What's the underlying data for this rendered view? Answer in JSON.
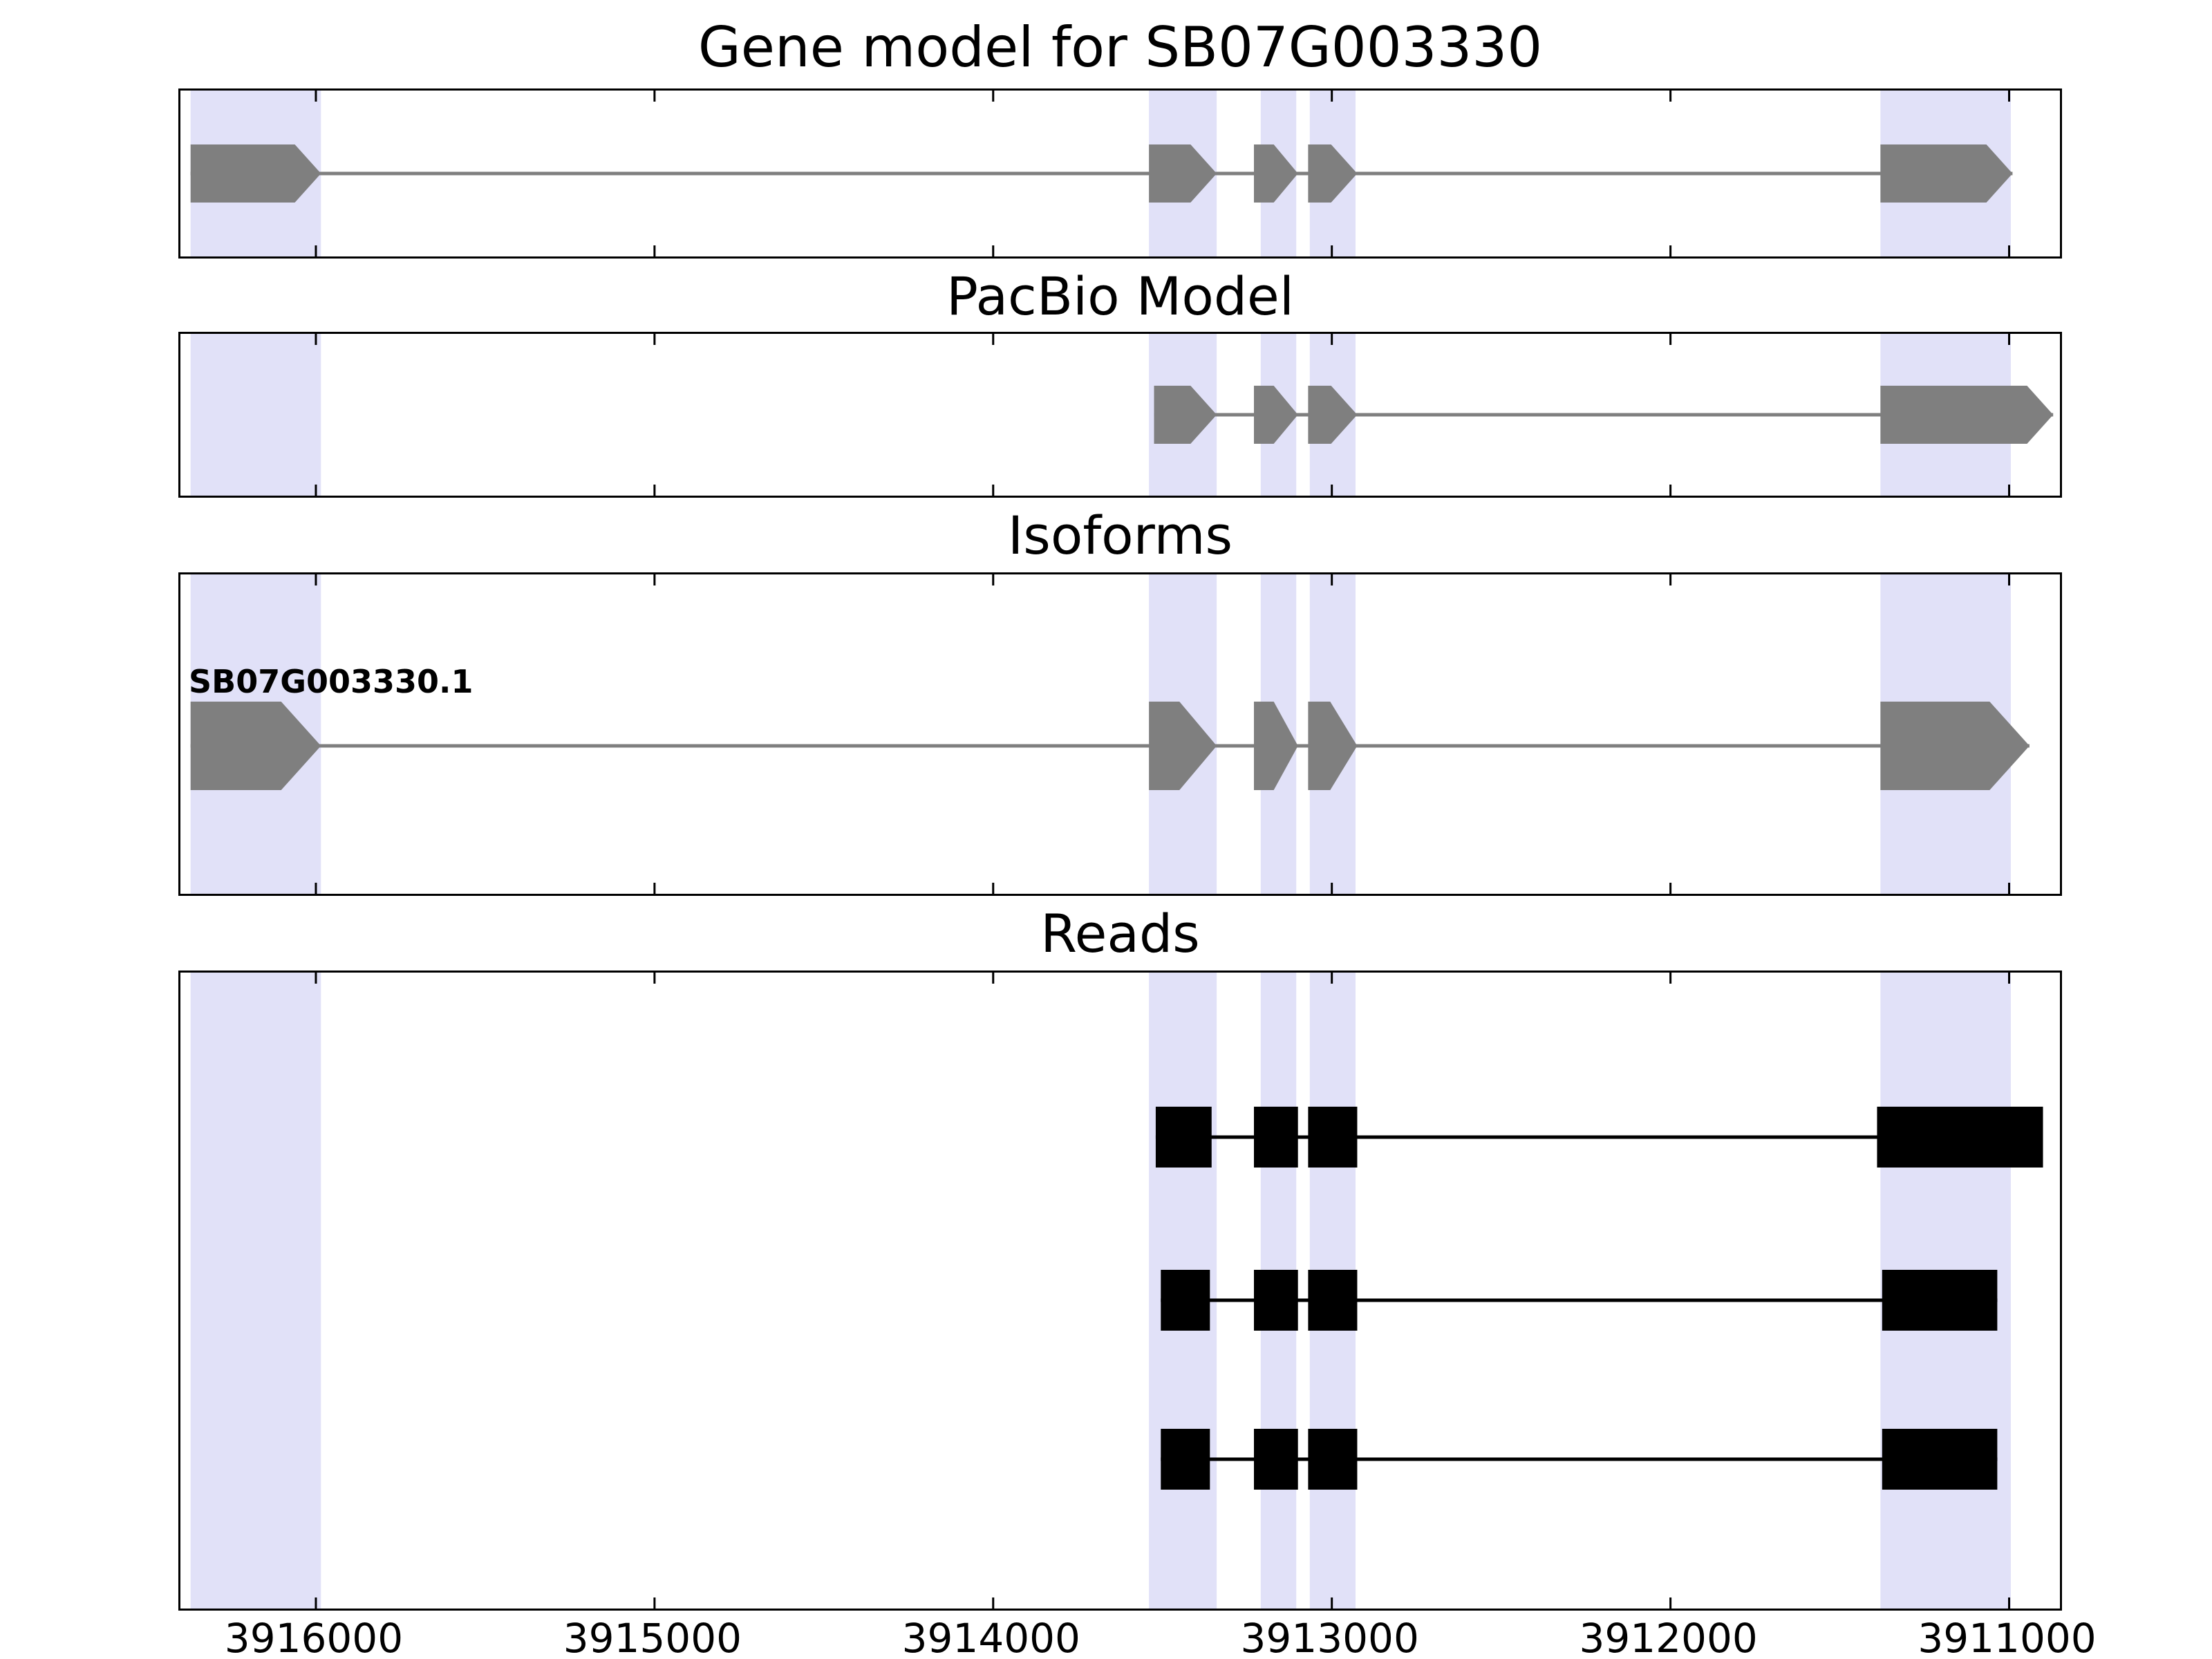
{
  "figure": {
    "main_title": "Gene model for SB07G003330",
    "gene_id": "SB07G003330"
  },
  "chart_data": {
    "type": "bar",
    "subtype": "gene-model-tracks",
    "title": "Gene model for SB07G003330",
    "x_axis": {
      "label": "",
      "left_value": 3916400,
      "right_value": 3910850,
      "direction": "decreasing-rightward",
      "ticks": [
        3916000,
        3915000,
        3914000,
        3913000,
        3912000,
        3911000
      ],
      "tick_labels": [
        "3916000",
        "3915000",
        "3914000",
        "3913000",
        "3912000",
        "3911000"
      ]
    },
    "colors": {
      "model_fill": "#7f7f7f",
      "reads_fill": "#000000",
      "highlight": "#e1e1f8",
      "border": "#000000"
    },
    "highlight_regions": [
      [
        3916370,
        3915985
      ],
      [
        3913540,
        3913340
      ],
      [
        3913210,
        3913105
      ],
      [
        3913065,
        3912930
      ],
      [
        3911380,
        3910995
      ]
    ],
    "panels": [
      {
        "name": "gene-model",
        "title": "Gene model for SB07G003330",
        "style": "arrow-model",
        "exons": [
          [
            3916370,
            3915985
          ],
          [
            3913540,
            3913340
          ],
          [
            3913230,
            3913100
          ],
          [
            3913070,
            3912925
          ],
          [
            3911380,
            3910990
          ]
        ]
      },
      {
        "name": "pacbio-model",
        "title": "PacBio Model",
        "style": "arrow-model",
        "exons": [
          [
            3913525,
            3913340
          ],
          [
            3913230,
            3913100
          ],
          [
            3913070,
            3912925
          ],
          [
            3911380,
            3910870
          ]
        ]
      },
      {
        "name": "isoforms",
        "title": "Isoforms",
        "style": "arrow-model",
        "isoform_label": "SB07G003330.1",
        "exons": [
          [
            3916370,
            3915985
          ],
          [
            3913540,
            3913340
          ],
          [
            3913230,
            3913100
          ],
          [
            3913070,
            3912925
          ],
          [
            3911380,
            3910940
          ]
        ]
      },
      {
        "name": "reads",
        "title": "Reads",
        "style": "reads",
        "rows": [
          [
            [
              3913520,
              3913355
            ],
            [
              3913230,
              3913100
            ],
            [
              3913070,
              3912925
            ],
            [
              3911390,
              3910900
            ]
          ],
          [
            [
              3913505,
              3913360
            ],
            [
              3913230,
              3913100
            ],
            [
              3913070,
              3912925
            ],
            [
              3911375,
              3911035
            ]
          ],
          [
            [
              3913505,
              3913360
            ],
            [
              3913230,
              3913100
            ],
            [
              3913070,
              3912925
            ],
            [
              3911375,
              3911035
            ]
          ]
        ]
      }
    ]
  }
}
